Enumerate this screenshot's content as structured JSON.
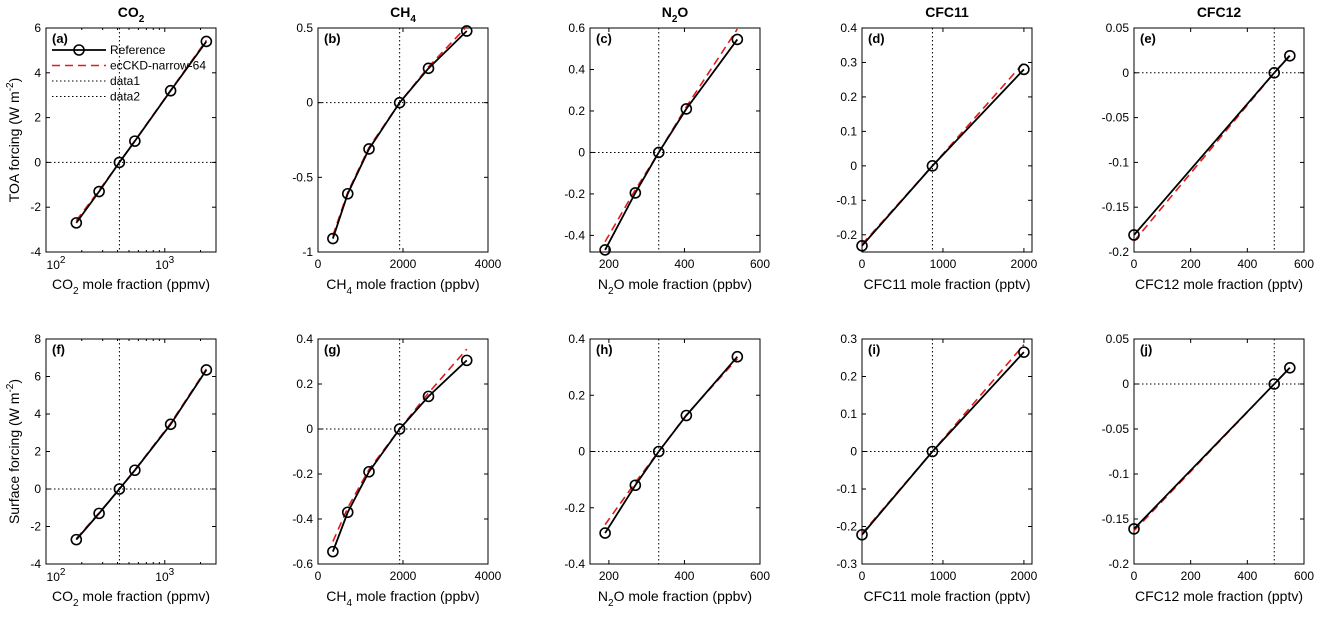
{
  "colors": {
    "reference": "#000000",
    "model": "#e41a1c",
    "guide": "#000000"
  },
  "legend": {
    "placement": "upper-left of panel (a)",
    "items": [
      {
        "label": "Reference",
        "style": "solid-marker"
      },
      {
        "label": "ecCKD-narrow-64",
        "style": "dashed"
      },
      {
        "label": "data1",
        "style": "dotted"
      },
      {
        "label": "data2",
        "style": "dotted"
      }
    ]
  },
  "row_ylabels": {
    "top": [
      "TOA forcing (W m",
      "-2",
      ")"
    ],
    "bottom": [
      "Surface forcing (W m",
      "-2",
      ")"
    ]
  },
  "chart_data": [
    {
      "id": "a",
      "type": "line",
      "row": 0,
      "col": 0,
      "panel_label": "(a)",
      "title": [
        "CO",
        "2",
        ""
      ],
      "xlabel": [
        "CO",
        "2",
        " mole fraction (ppmv)"
      ],
      "ylabel": "TOA forcing (W m-2)",
      "xscale": "log",
      "xlim": [
        100,
        2700
      ],
      "ylim": [
        -4,
        6
      ],
      "xticks": [
        100,
        1000
      ],
      "xtick_labels": [
        [
          "10",
          "2"
        ],
        [
          "10",
          "3"
        ]
      ],
      "yticks": [
        -4,
        -2,
        0,
        2,
        4,
        6
      ],
      "ytick_labels": [
        "-4",
        "-2",
        "0",
        "2",
        "4",
        "6"
      ],
      "vline": 415,
      "hline": 0,
      "series": [
        {
          "name": "Reference",
          "x": [
            180,
            280,
            415,
            560,
            1120,
            2240
          ],
          "y": [
            -2.7,
            -1.3,
            0,
            0.95,
            3.2,
            5.4
          ]
        },
        {
          "name": "ecCKD-narrow-64",
          "x": [
            180,
            280,
            415,
            560,
            1120,
            2240
          ],
          "y": [
            -2.6,
            -1.25,
            0,
            0.97,
            3.22,
            5.45
          ]
        }
      ]
    },
    {
      "id": "b",
      "type": "line",
      "row": 0,
      "col": 1,
      "panel_label": "(b)",
      "title": [
        "CH",
        "4",
        ""
      ],
      "xlabel": [
        "CH",
        "4",
        " mole fraction (ppbv)"
      ],
      "ylabel": "",
      "xscale": "linear",
      "xlim": [
        0,
        4000
      ],
      "ylim": [
        -1,
        0.5
      ],
      "xticks": [
        0,
        2000,
        4000
      ],
      "xtick_labels": [
        "0",
        "2000",
        "4000"
      ],
      "yticks": [
        -1,
        -0.5,
        0,
        0.5
      ],
      "ytick_labels": [
        "-1",
        "-0.5",
        "0",
        "0.5"
      ],
      "vline": 1921,
      "hline": 0,
      "series": [
        {
          "name": "Reference",
          "x": [
            350,
            700,
            1200,
            1921,
            2600,
            3500
          ],
          "y": [
            -0.91,
            -0.61,
            -0.31,
            0,
            0.23,
            0.48
          ]
        },
        {
          "name": "ecCKD-narrow-64",
          "x": [
            350,
            700,
            1200,
            1921,
            2600,
            3500
          ],
          "y": [
            -0.89,
            -0.6,
            -0.3,
            0,
            0.24,
            0.51
          ]
        }
      ]
    },
    {
      "id": "c",
      "type": "line",
      "row": 0,
      "col": 2,
      "panel_label": "(c)",
      "title": [
        "N",
        "2",
        "O"
      ],
      "xlabel": [
        "N",
        "2",
        "O mole fraction (ppbv)"
      ],
      "ylabel": "",
      "xscale": "linear",
      "xlim": [
        150,
        600
      ],
      "ylim": [
        -0.48,
        0.6
      ],
      "xticks": [
        200,
        400,
        600
      ],
      "xtick_labels": [
        "200",
        "400",
        "600"
      ],
      "yticks": [
        -0.4,
        -0.2,
        0,
        0.2,
        0.4,
        0.6
      ],
      "ytick_labels": [
        "-0.4",
        "-0.2",
        "0",
        "0.2",
        "0.4",
        "0.6"
      ],
      "vline": 332,
      "hline": 0,
      "series": [
        {
          "name": "Reference",
          "x": [
            190,
            270,
            332,
            405,
            540
          ],
          "y": [
            -0.47,
            -0.195,
            0,
            0.21,
            0.545
          ]
        },
        {
          "name": "ecCKD-narrow-64",
          "x": [
            190,
            270,
            332,
            405,
            540
          ],
          "y": [
            -0.43,
            -0.18,
            0,
            0.22,
            0.595
          ]
        }
      ]
    },
    {
      "id": "d",
      "type": "line",
      "row": 0,
      "col": 3,
      "panel_label": "(d)",
      "title": [
        "CFC11",
        "",
        ""
      ],
      "xlabel": [
        "CFC11 mole fraction (pptv)",
        "",
        ""
      ],
      "ylabel": "",
      "xscale": "linear",
      "xlim": [
        0,
        2100
      ],
      "ylim": [
        -0.25,
        0.4
      ],
      "xticks": [
        0,
        1000,
        2000
      ],
      "xtick_labels": [
        "0",
        "1000",
        "2000"
      ],
      "yticks": [
        -0.2,
        -0.1,
        0,
        0.1,
        0.2,
        0.3,
        0.4
      ],
      "ytick_labels": [
        "-0.2",
        "-0.1",
        "0",
        "0.1",
        "0.2",
        "0.3",
        "0.4"
      ],
      "vline": 870,
      "hline": null,
      "series": [
        {
          "name": "Reference",
          "x": [
            0,
            870,
            2000
          ],
          "y": [
            -0.232,
            0,
            0.28
          ]
        },
        {
          "name": "ecCKD-narrow-64",
          "x": [
            0,
            870,
            2000
          ],
          "y": [
            -0.228,
            0,
            0.3
          ]
        }
      ]
    },
    {
      "id": "e",
      "type": "line",
      "row": 0,
      "col": 4,
      "panel_label": "(e)",
      "title": [
        "CFC12",
        "",
        ""
      ],
      "xlabel": [
        "CFC12 mole fraction (pptv)",
        "",
        ""
      ],
      "ylabel": "",
      "xscale": "linear",
      "xlim": [
        0,
        600
      ],
      "ylim": [
        -0.2,
        0.05
      ],
      "xticks": [
        0,
        200,
        400,
        600
      ],
      "xtick_labels": [
        "0",
        "200",
        "400",
        "600"
      ],
      "yticks": [
        -0.2,
        -0.15,
        -0.1,
        -0.05,
        0,
        0.05
      ],
      "ytick_labels": [
        "-0.2",
        "-0.15",
        "-0.1",
        "-0.05",
        "0",
        "0.05"
      ],
      "vline": 495,
      "hline": 0,
      "series": [
        {
          "name": "Reference",
          "x": [
            0,
            495,
            550
          ],
          "y": [
            -0.181,
            0,
            0.019
          ]
        },
        {
          "name": "ecCKD-narrow-64",
          "x": [
            0,
            495,
            550
          ],
          "y": [
            -0.188,
            0,
            0.02
          ]
        }
      ]
    },
    {
      "id": "f",
      "type": "line",
      "row": 1,
      "col": 0,
      "panel_label": "(f)",
      "title": null,
      "xlabel": [
        "CO",
        "2",
        " mole fraction (ppmv)"
      ],
      "ylabel": "Surface forcing (W m-2)",
      "xscale": "log",
      "xlim": [
        100,
        2700
      ],
      "ylim": [
        -4,
        8
      ],
      "xticks": [
        100,
        1000
      ],
      "xtick_labels": [
        [
          "10",
          "2"
        ],
        [
          "10",
          "3"
        ]
      ],
      "yticks": [
        -4,
        -2,
        0,
        2,
        4,
        6,
        8
      ],
      "ytick_labels": [
        "-4",
        "-2",
        "0",
        "2",
        "4",
        "6",
        "8"
      ],
      "vline": 415,
      "hline": 0,
      "series": [
        {
          "name": "Reference",
          "x": [
            180,
            280,
            415,
            560,
            1120,
            2240
          ],
          "y": [
            -2.7,
            -1.3,
            0,
            1.0,
            3.45,
            6.35
          ]
        },
        {
          "name": "ecCKD-narrow-64",
          "x": [
            180,
            280,
            415,
            560,
            1120,
            2240
          ],
          "y": [
            -2.65,
            -1.27,
            0,
            1.02,
            3.5,
            6.4
          ]
        }
      ]
    },
    {
      "id": "g",
      "type": "line",
      "row": 1,
      "col": 1,
      "panel_label": "(g)",
      "title": null,
      "xlabel": [
        "CH",
        "4",
        " mole fraction (ppbv)"
      ],
      "ylabel": "",
      "xscale": "linear",
      "xlim": [
        0,
        4000
      ],
      "ylim": [
        -0.6,
        0.4
      ],
      "xticks": [
        0,
        2000,
        4000
      ],
      "xtick_labels": [
        "0",
        "2000",
        "4000"
      ],
      "yticks": [
        -0.6,
        -0.4,
        -0.2,
        0,
        0.2,
        0.4
      ],
      "ytick_labels": [
        "-0.6",
        "-0.4",
        "-0.2",
        "0",
        "0.2",
        "0.4"
      ],
      "vline": 1921,
      "hline": 0,
      "series": [
        {
          "name": "Reference",
          "x": [
            350,
            700,
            1200,
            1921,
            2600,
            3500
          ],
          "y": [
            -0.545,
            -0.37,
            -0.19,
            0,
            0.145,
            0.305
          ]
        },
        {
          "name": "ecCKD-narrow-64",
          "x": [
            350,
            700,
            1200,
            1921,
            2600,
            3500
          ],
          "y": [
            -0.5,
            -0.35,
            -0.18,
            0,
            0.16,
            0.355
          ]
        }
      ]
    },
    {
      "id": "h",
      "type": "line",
      "row": 1,
      "col": 2,
      "panel_label": "(h)",
      "title": null,
      "xlabel": [
        "N",
        "2",
        "O mole fraction (ppbv)"
      ],
      "ylabel": "",
      "xscale": "linear",
      "xlim": [
        150,
        600
      ],
      "ylim": [
        -0.4,
        0.4
      ],
      "xticks": [
        200,
        400,
        600
      ],
      "xtick_labels": [
        "200",
        "400",
        "600"
      ],
      "yticks": [
        -0.4,
        -0.2,
        0,
        0.2,
        0.4
      ],
      "ytick_labels": [
        "-0.4",
        "-0.2",
        "0",
        "0.2",
        "0.4"
      ],
      "vline": 332,
      "hline": 0,
      "series": [
        {
          "name": "Reference",
          "x": [
            190,
            270,
            332,
            405,
            540
          ],
          "y": [
            -0.29,
            -0.12,
            0,
            0.128,
            0.337
          ]
        },
        {
          "name": "ecCKD-narrow-64",
          "x": [
            190,
            270,
            332,
            405,
            540
          ],
          "y": [
            -0.26,
            -0.11,
            0,
            0.13,
            0.33
          ]
        }
      ]
    },
    {
      "id": "i",
      "type": "line",
      "row": 1,
      "col": 3,
      "panel_label": "(i)",
      "title": null,
      "xlabel": [
        "CFC11 mole fraction (pptv)",
        "",
        ""
      ],
      "ylabel": "",
      "xscale": "linear",
      "xlim": [
        0,
        2100
      ],
      "ylim": [
        -0.3,
        0.3
      ],
      "xticks": [
        0,
        1000,
        2000
      ],
      "xtick_labels": [
        "0",
        "1000",
        "2000"
      ],
      "yticks": [
        -0.3,
        -0.2,
        -0.1,
        0,
        0.1,
        0.2,
        0.3
      ],
      "ytick_labels": [
        "-0.3",
        "-0.2",
        "-0.1",
        "0",
        "0.1",
        "0.2",
        "0.3"
      ],
      "vline": 870,
      "hline": 0,
      "series": [
        {
          "name": "Reference",
          "x": [
            0,
            870,
            2000
          ],
          "y": [
            -0.222,
            0,
            0.265
          ]
        },
        {
          "name": "ecCKD-narrow-64",
          "x": [
            0,
            870,
            2000
          ],
          "y": [
            -0.219,
            0,
            0.285
          ]
        }
      ]
    },
    {
      "id": "j",
      "type": "line",
      "row": 1,
      "col": 4,
      "panel_label": "(j)",
      "title": null,
      "xlabel": [
        "CFC12 mole fraction (pptv)",
        "",
        ""
      ],
      "ylabel": "",
      "xscale": "linear",
      "xlim": [
        0,
        600
      ],
      "ylim": [
        -0.2,
        0.05
      ],
      "xticks": [
        0,
        200,
        400,
        600
      ],
      "xtick_labels": [
        "0",
        "200",
        "400",
        "600"
      ],
      "yticks": [
        -0.2,
        -0.15,
        -0.1,
        -0.05,
        0,
        0.05
      ],
      "ytick_labels": [
        "-0.2",
        "-0.15",
        "-0.1",
        "-0.05",
        "0",
        "0.05"
      ],
      "vline": 495,
      "hline": 0,
      "series": [
        {
          "name": "Reference",
          "x": [
            0,
            495,
            550
          ],
          "y": [
            -0.161,
            0,
            0.018
          ]
        },
        {
          "name": "ecCKD-narrow-64",
          "x": [
            0,
            495,
            550
          ],
          "y": [
            -0.163,
            0,
            0.018
          ]
        }
      ]
    }
  ]
}
